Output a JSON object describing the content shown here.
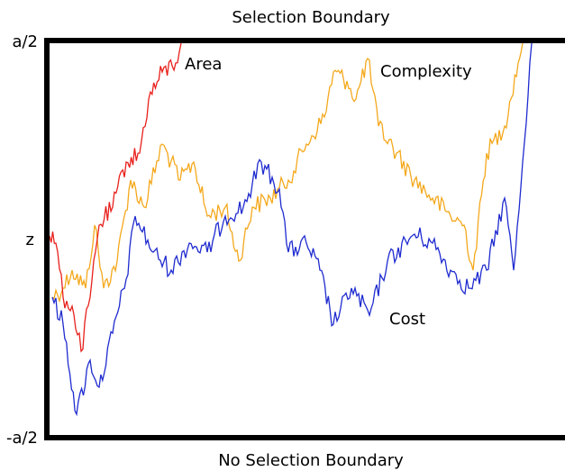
{
  "title": "Selection Boundary",
  "footer": "No Selection Boundary",
  "axis_labels": {
    "top": "a/2",
    "middle": "z",
    "bottom": "-a/2"
  },
  "curves": [
    {
      "label": "Area",
      "color": "#e8201c"
    },
    {
      "label": "Complexity",
      "color": "#f4a81c"
    },
    {
      "label": "Cost",
      "color": "#1f2bcf"
    }
  ]
}
